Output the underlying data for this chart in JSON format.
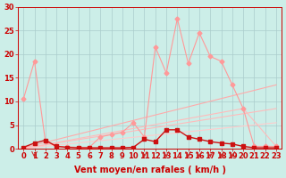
{
  "background_color": "#cceee8",
  "grid_color": "#aacccc",
  "xlabel": "Vent moyen/en rafales ( km/h )",
  "xlim": [
    -0.5,
    23.5
  ],
  "ylim": [
    0,
    30
  ],
  "yticks": [
    0,
    5,
    10,
    15,
    20,
    25,
    30
  ],
  "xticks": [
    0,
    1,
    2,
    3,
    4,
    5,
    6,
    7,
    8,
    9,
    10,
    11,
    12,
    13,
    14,
    15,
    16,
    17,
    18,
    19,
    20,
    21,
    22,
    23
  ],
  "line_pink_main": {
    "x": [
      0,
      1,
      2,
      3,
      4,
      5,
      6,
      7,
      8,
      9,
      10,
      11,
      12,
      13,
      14,
      15,
      16,
      17,
      18,
      19,
      20,
      21,
      22,
      23
    ],
    "y": [
      10.5,
      18.5,
      1.5,
      0.5,
      0.4,
      0.3,
      0.3,
      2.5,
      3.0,
      3.5,
      5.5,
      2.5,
      21.5,
      16.0,
      27.5,
      18.0,
      24.5,
      19.5,
      18.5,
      13.5,
      8.5,
      0.5,
      0.5,
      0.5
    ],
    "color": "#ff9999",
    "marker": "D",
    "markersize": 2.5,
    "linewidth": 0.8
  },
  "line_red_dark": {
    "x": [
      0,
      1,
      2,
      3,
      4,
      5,
      6,
      7,
      8,
      9,
      10,
      11,
      12,
      13,
      14,
      15,
      16,
      17,
      18,
      19,
      20,
      21,
      22,
      23
    ],
    "y": [
      0.3,
      1.2,
      1.8,
      0.5,
      0.3,
      0.2,
      0.2,
      0.2,
      0.2,
      0.2,
      0.3,
      2.0,
      1.5,
      4.0,
      4.0,
      2.5,
      2.0,
      1.5,
      1.2,
      1.0,
      0.5,
      0.2,
      0.2,
      0.2
    ],
    "color": "#cc1111",
    "marker": "s",
    "markersize": 2.5,
    "linewidth": 1.0
  },
  "line_slope1": {
    "x": [
      0,
      23
    ],
    "y": [
      0.2,
      13.5
    ],
    "color": "#ffaaaa",
    "linewidth": 0.8
  },
  "line_slope2": {
    "x": [
      0,
      23
    ],
    "y": [
      0.1,
      8.5
    ],
    "color": "#ffbbbb",
    "linewidth": 0.8
  },
  "line_slope3": {
    "x": [
      0,
      23
    ],
    "y": [
      0.05,
      5.5
    ],
    "color": "#ffcccc",
    "linewidth": 0.8
  },
  "line_slope4": {
    "x": [
      0,
      20,
      23
    ],
    "y": [
      0.05,
      8.5,
      0.5
    ],
    "color": "#ffbbbb",
    "linewidth": 0.8
  },
  "arrows_x": [
    1,
    11,
    13,
    15,
    16,
    17,
    18,
    19
  ],
  "arrow_color": "#cc2222",
  "tick_label_color": "#cc0000",
  "xlabel_color": "#cc0000",
  "xlabel_fontsize": 7,
  "tick_fontsize": 6
}
